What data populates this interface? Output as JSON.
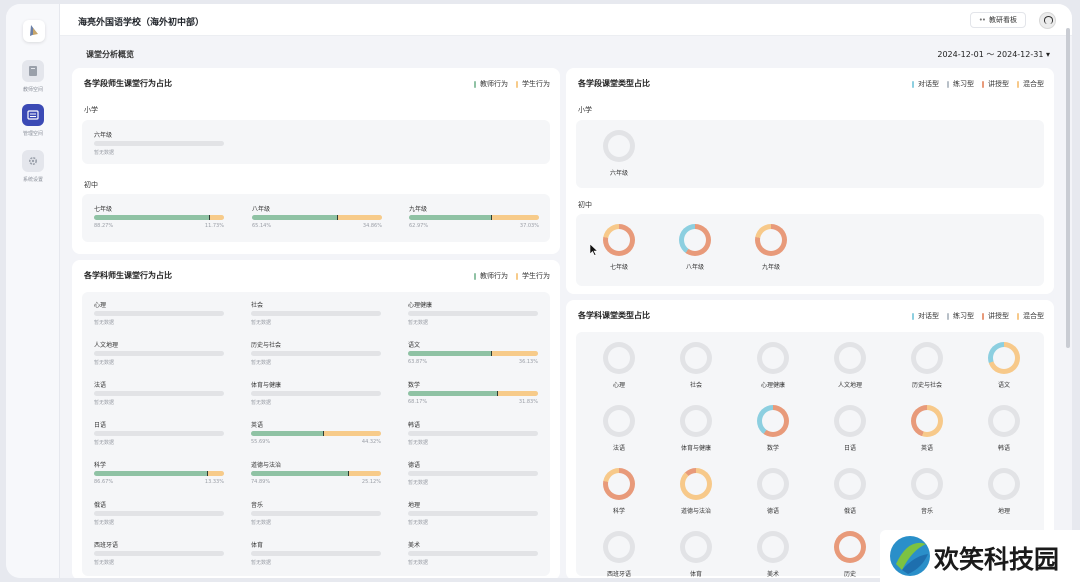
{
  "sidebar": {
    "items": [
      {
        "label": "教师空间",
        "icon": "book-icon"
      },
      {
        "label": "管理空间",
        "icon": "dashboard-icon"
      },
      {
        "label": "系统设置",
        "icon": "gear-icon"
      }
    ]
  },
  "header": {
    "school": "海亮外国语学校（海外初中部）",
    "board_button": "教研看板"
  },
  "subheader": {
    "title": "课堂分析概览",
    "date_range": "2024-12-01 ～ 2024-12-31 ▾"
  },
  "legend_behavior": [
    "教师行为",
    "学生行为"
  ],
  "legend_types": [
    "对话型",
    "练习型",
    "讲授型",
    "混合型"
  ],
  "colors": {
    "teacher": "#8fc2a4",
    "student": "#f7cb8a",
    "dialogue": "#8ccfe0",
    "practice": "#b8c0c8",
    "lecture": "#e89a7a",
    "mixed": "#f7c98a",
    "empty": "#e2e3e6",
    "accent": "#3b4ab5"
  },
  "stage_behavior": {
    "title": "各学段师生课堂行为占比",
    "primary": {
      "label": "小学",
      "items": [
        {
          "name": "六年级",
          "teacher": null,
          "left": "",
          "right": "暂无数据"
        }
      ]
    },
    "middle": {
      "label": "初中",
      "items": [
        {
          "name": "七年级",
          "teacher": 88.27,
          "left": "88.27%",
          "right": "11.73%"
        },
        {
          "name": "八年级",
          "teacher": 65.14,
          "left": "65.14%",
          "right": "34.86%"
        },
        {
          "name": "九年级",
          "teacher": 62.97,
          "left": "62.97%",
          "right": "37.03%"
        }
      ]
    }
  },
  "subject_behavior": {
    "title": "各学科师生课堂行为占比",
    "items": [
      {
        "name": "心理",
        "teacher": null,
        "left": "暂无数据",
        "right": ""
      },
      {
        "name": "社会",
        "teacher": null,
        "left": "暂无数据",
        "right": ""
      },
      {
        "name": "心理健康",
        "teacher": null,
        "left": "暂无数据",
        "right": ""
      },
      {
        "name": "人文地理",
        "teacher": null,
        "left": "暂无数据",
        "right": ""
      },
      {
        "name": "历史与社会",
        "teacher": null,
        "left": "暂无数据",
        "right": ""
      },
      {
        "name": "语文",
        "teacher": 63.87,
        "left": "63.87%",
        "right": "36.13%"
      },
      {
        "name": "法语",
        "teacher": null,
        "left": "暂无数据",
        "right": ""
      },
      {
        "name": "体育与健康",
        "teacher": null,
        "left": "暂无数据",
        "right": ""
      },
      {
        "name": "数学",
        "teacher": 68.17,
        "left": "68.17%",
        "right": "31.83%"
      },
      {
        "name": "日语",
        "teacher": null,
        "left": "暂无数据",
        "right": ""
      },
      {
        "name": "英语",
        "teacher": 55.69,
        "left": "55.69%",
        "right": "44.32%"
      },
      {
        "name": "韩语",
        "teacher": null,
        "left": "暂无数据",
        "right": ""
      },
      {
        "name": "科学",
        "teacher": 86.67,
        "left": "86.67%",
        "right": "13.33%"
      },
      {
        "name": "道德与法治",
        "teacher": 74.89,
        "left": "74.89%",
        "right": "25.12%"
      },
      {
        "name": "德语",
        "teacher": null,
        "left": "暂无数据",
        "right": ""
      },
      {
        "name": "俄语",
        "teacher": null,
        "left": "暂无数据",
        "right": ""
      },
      {
        "name": "音乐",
        "teacher": null,
        "left": "暂无数据",
        "right": ""
      },
      {
        "name": "地理",
        "teacher": null,
        "left": "暂无数据",
        "right": ""
      },
      {
        "name": "西班牙语",
        "teacher": null,
        "left": "暂无数据",
        "right": ""
      },
      {
        "name": "体育",
        "teacher": null,
        "left": "暂无数据",
        "right": ""
      },
      {
        "name": "美术",
        "teacher": null,
        "left": "暂无数据",
        "right": ""
      }
    ]
  },
  "stage_types": {
    "title": "各学段课堂类型占比",
    "primary": {
      "label": "小学",
      "items": [
        {
          "name": "六年级",
          "mix": "empty"
        }
      ]
    },
    "middle": {
      "label": "初中",
      "items": [
        {
          "name": "七年级",
          "mix": "mostly-lecture"
        },
        {
          "name": "八年级",
          "mix": "lecture-dialogue"
        },
        {
          "name": "九年级",
          "mix": "mostly-lecture"
        }
      ]
    }
  },
  "subject_types": {
    "title": "各学科课堂类型占比",
    "items": [
      {
        "name": "心理",
        "mix": "empty"
      },
      {
        "name": "社会",
        "mix": "empty"
      },
      {
        "name": "心理健康",
        "mix": "empty"
      },
      {
        "name": "人文地理",
        "mix": "empty"
      },
      {
        "name": "历史与社会",
        "mix": "empty"
      },
      {
        "name": "语文",
        "mix": "mixed-dialogue"
      },
      {
        "name": "法语",
        "mix": "empty"
      },
      {
        "name": "体育与健康",
        "mix": "empty"
      },
      {
        "name": "数学",
        "mix": "lecture-dialogue"
      },
      {
        "name": "日语",
        "mix": "empty"
      },
      {
        "name": "英语",
        "mix": "mixed-lecture"
      },
      {
        "name": "韩语",
        "mix": "empty"
      },
      {
        "name": "科学",
        "mix": "mostly-lecture"
      },
      {
        "name": "道德与法治",
        "mix": "mostly-mixed"
      },
      {
        "name": "德语",
        "mix": "empty"
      },
      {
        "name": "俄语",
        "mix": "empty"
      },
      {
        "name": "音乐",
        "mix": "empty"
      },
      {
        "name": "地理",
        "mix": "empty"
      },
      {
        "name": "西班牙语",
        "mix": "empty"
      },
      {
        "name": "体育",
        "mix": "empty"
      },
      {
        "name": "美术",
        "mix": "empty"
      },
      {
        "name": "历史",
        "mix": "all-lecture"
      }
    ]
  },
  "watermark": {
    "text": "欢笑科技园"
  }
}
